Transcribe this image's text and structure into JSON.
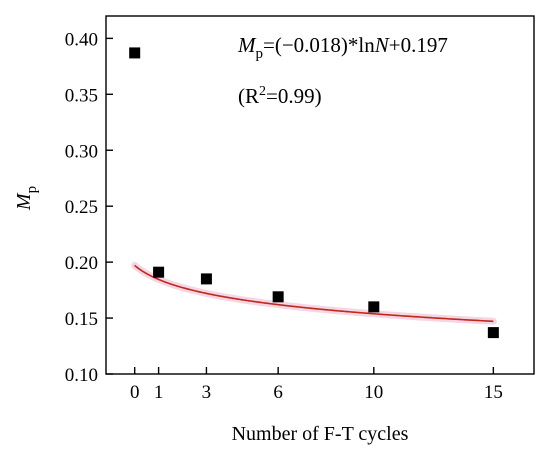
{
  "chart_data": {
    "type": "scatter",
    "xlabel": "Number of F-T cycles",
    "ylabel": {
      "main": "M",
      "sub": "p"
    },
    "x_ticks": [
      0,
      1,
      3,
      6,
      10,
      15
    ],
    "y_ticks": [
      "0.10",
      "0.15",
      "0.20",
      "0.25",
      "0.30",
      "0.35",
      "0.40"
    ],
    "xlim": [
      -1.2,
      16.7
    ],
    "ylim": [
      0.1,
      0.42
    ],
    "series": [
      {
        "marker": "square",
        "color": "#000000",
        "x": [
          0,
          1,
          3,
          6,
          10,
          15
        ],
        "y": [
          0.387,
          0.191,
          0.185,
          0.169,
          0.16,
          0.137
        ]
      }
    ],
    "fit": {
      "type": "log",
      "a": -0.018,
      "b": 0.197,
      "color": "#c0281e",
      "band_color": "#f2c8d8"
    },
    "annotations": {
      "equation": {
        "lhs_main": "M",
        "lhs_sub": "p",
        "mid": "=(−0.018)*ln",
        "var": "N",
        "tail": "+0.197"
      },
      "r2": {
        "pre": "(R",
        "sup": "2",
        "post": "=0.99)"
      }
    }
  }
}
